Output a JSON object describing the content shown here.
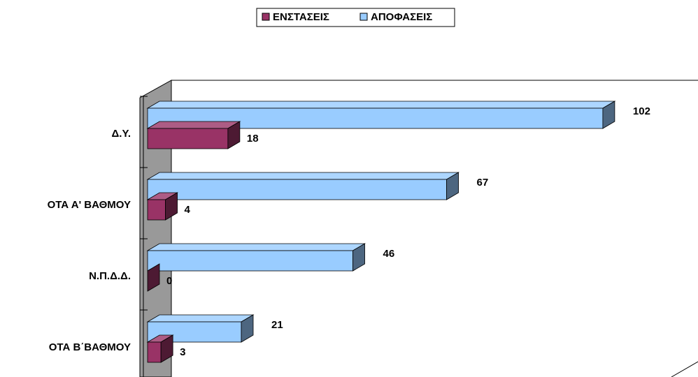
{
  "chart_data": {
    "type": "bar3d_horizontal",
    "categories": [
      "Δ.Υ.",
      "ΟΤΑ Α' ΒΑΘΜΟΥ",
      "Ν.Π.Δ.Δ.",
      "ΟΤΑ Β΄ΒΑΘΜΟΥ"
    ],
    "series": [
      {
        "name": "ΕΝΣΤΑΣΕΙΣ",
        "color": "#993366",
        "values": [
          18,
          4,
          0,
          3
        ]
      },
      {
        "name": "ΑΠΟΦΑΣΕΙΣ",
        "color": "#99ccff",
        "values": [
          102,
          67,
          46,
          21
        ]
      }
    ],
    "xlim": [
      0,
      118
    ],
    "legend": "top"
  }
}
